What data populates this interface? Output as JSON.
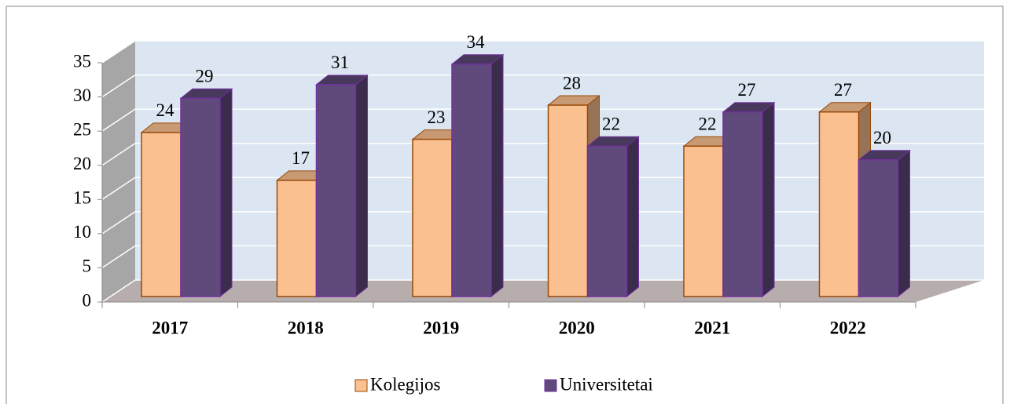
{
  "chart_data": {
    "type": "bar3d",
    "categories": [
      "2017",
      "2018",
      "2019",
      "2020",
      "2021",
      "2022"
    ],
    "series": [
      {
        "name": "Kolegijos",
        "color": "#fac090",
        "values": [
          24,
          17,
          23,
          28,
          22,
          27
        ]
      },
      {
        "name": "Universitetai",
        "color": "#604a7b",
        "values": [
          29,
          31,
          34,
          22,
          27,
          20
        ]
      }
    ],
    "ylim": [
      0,
      35
    ],
    "yticks": [
      0,
      5,
      10,
      15,
      20,
      25,
      30,
      35
    ],
    "grid": true,
    "legend": "bottom"
  }
}
